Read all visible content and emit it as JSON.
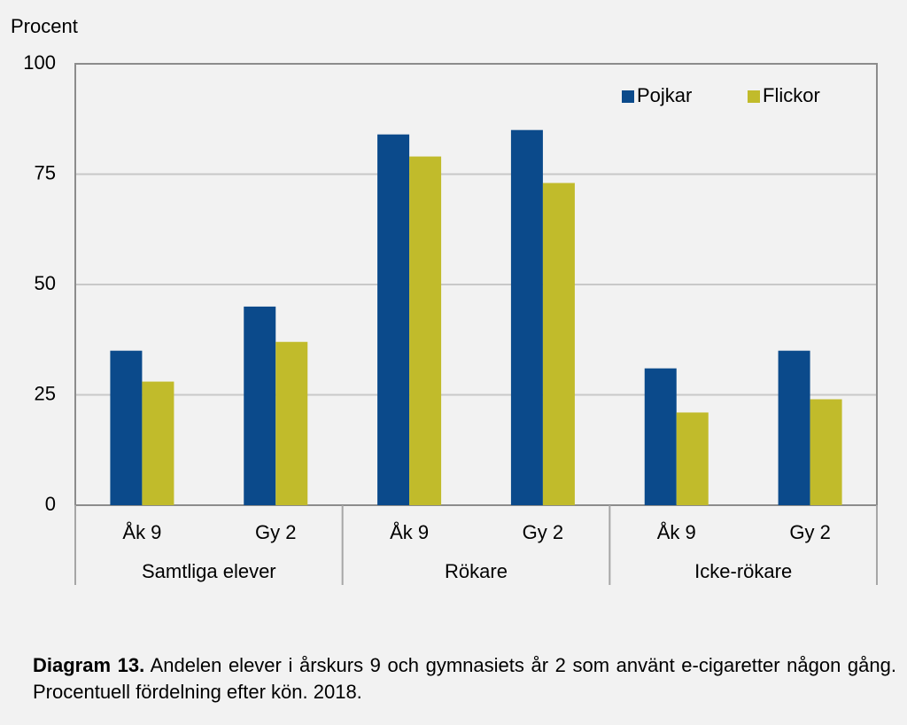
{
  "chart_data": {
    "type": "bar",
    "y_label": "Procent",
    "categories": [
      "Åk 9",
      "Gy 2",
      "Åk 9",
      "Gy 2",
      "Åk 9",
      "Gy 2"
    ],
    "groups": [
      "Samtliga elever",
      "Rökare",
      "Icke-rökare"
    ],
    "series": [
      {
        "name": "Pojkar",
        "color": "#0b4a8b",
        "values": [
          35,
          45,
          84,
          85,
          31,
          35
        ]
      },
      {
        "name": "Flickor",
        "color": "#c1bb2b",
        "values": [
          28,
          37,
          79,
          73,
          21,
          24
        ]
      }
    ],
    "ylim": [
      0,
      100
    ],
    "yticks": [
      0,
      25,
      50,
      75,
      100
    ],
    "grid": true,
    "legend": "top-right"
  },
  "caption_label": "Diagram 13.",
  "caption": "Andelen elever i årskurs 9 och gymnasiets år 2 som använt e-cigaretter någon gång. Procentuell fördelning efter kön. 2018."
}
